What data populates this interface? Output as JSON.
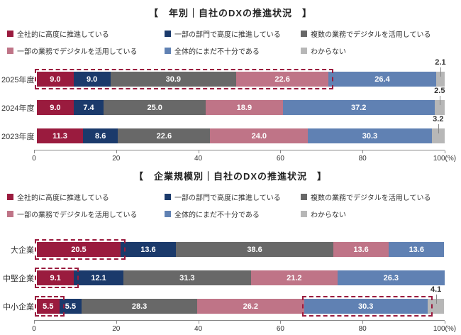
{
  "chart_data": [
    {
      "type": "bar",
      "orientation": "horizontal",
      "stacked": true,
      "title": "【　年別｜自社のDXの推進状況　】",
      "unit": "%",
      "xlim": [
        0,
        100
      ],
      "series": [
        {
          "label": "全社的に高度に推進している",
          "color": "#9a1b3e"
        },
        {
          "label": "一部の部門で高度に推進している",
          "color": "#1b3a6b"
        },
        {
          "label": "複数の業務でデジタルを活用している",
          "color": "#686868"
        },
        {
          "label": "一部の業務でデジタルを活用している",
          "color": "#bf7487"
        },
        {
          "label": "全体的にまだ不十分である",
          "color": "#6081b3"
        },
        {
          "label": "わからない",
          "color": "#b7b7b7"
        }
      ],
      "rows": [
        {
          "label": "2025年度",
          "values": [
            9.0,
            9.0,
            30.9,
            22.6,
            26.4,
            2.1
          ],
          "last_label_outside": true
        },
        {
          "label": "2024年度",
          "values": [
            9.0,
            7.4,
            25.0,
            18.9,
            37.2,
            2.5
          ],
          "last_label_outside": true
        },
        {
          "label": "2023年度",
          "values": [
            11.3,
            8.6,
            22.6,
            24.0,
            30.3,
            3.2
          ],
          "last_label_outside": true
        }
      ],
      "highlights": [
        {
          "row": 0,
          "from_segment": 0,
          "to_segment": 3
        }
      ],
      "highlight_color": "#9a1b3e",
      "axis": {
        "ticks": [
          0,
          20,
          40,
          60,
          80,
          100
        ],
        "tick_labels": [
          "0",
          "20",
          "40",
          "60",
          "80",
          "100(%)"
        ]
      }
    },
    {
      "type": "bar",
      "orientation": "horizontal",
      "stacked": true,
      "title": "【　企業規模別｜自社のDXの推進状況　】",
      "unit": "%",
      "xlim": [
        0,
        100
      ],
      "series": [
        {
          "label": "全社的に高度に推進している",
          "color": "#9a1b3e"
        },
        {
          "label": "一部の部門で高度に推進している",
          "color": "#1b3a6b"
        },
        {
          "label": "複数の業務でデジタルを活用している",
          "color": "#686868"
        },
        {
          "label": "一部の業務でデジタルを活用している",
          "color": "#bf7487"
        },
        {
          "label": "全体的にまだ不十分である",
          "color": "#6081b3"
        },
        {
          "label": "わからない",
          "color": "#b7b7b7"
        }
      ],
      "rows": [
        {
          "label": "大企業",
          "values": [
            20.5,
            13.6,
            38.6,
            13.6,
            13.6
          ],
          "last_label_outside": false
        },
        {
          "label": "中堅企業",
          "values": [
            9.1,
            12.1,
            31.3,
            21.2,
            26.3
          ],
          "last_label_outside": false
        },
        {
          "label": "中小企業",
          "values": [
            5.5,
            5.5,
            28.3,
            26.2,
            30.3,
            4.1
          ],
          "last_label_outside": true
        }
      ],
      "highlights": [
        {
          "row": 0,
          "from_segment": 0,
          "to_segment": 0
        },
        {
          "row": 1,
          "from_segment": 0,
          "to_segment": 0
        },
        {
          "row": 2,
          "from_segment": 0,
          "to_segment": 0
        },
        {
          "row": 2,
          "from_segment": 4,
          "to_segment": 4
        }
      ],
      "highlight_color": "#9a1b3e",
      "axis": {
        "ticks": [
          0,
          20,
          40,
          60,
          80,
          100
        ],
        "tick_labels": [
          "0",
          "20",
          "40",
          "60",
          "80",
          "100(%)"
        ]
      }
    }
  ]
}
